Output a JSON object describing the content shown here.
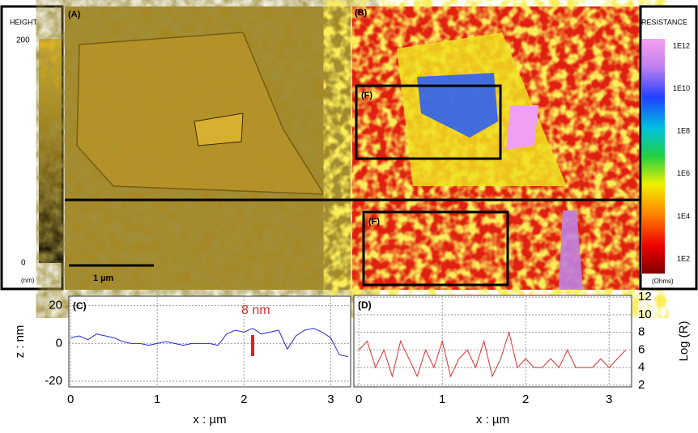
{
  "panels": {
    "a_label": "(A)",
    "b_label": "(B)",
    "scale_bar": "1 µm",
    "f_labels": [
      "(F)",
      "(F)"
    ]
  },
  "height_colorbar": {
    "title": "HEIGHT",
    "ticks": [
      "200",
      "0"
    ],
    "unit": "(nm)"
  },
  "resistance_colorbar": {
    "title": "RESISTANCE",
    "ticks": [
      "1E12",
      "1E10",
      "1E8",
      "1E6",
      "1E4",
      "1E2"
    ],
    "unit": "(Ohms)"
  },
  "chart_data": [
    {
      "type": "line",
      "panel_label": "(C)",
      "x_label": "x : µm",
      "y_label": "z : nm",
      "annotation": "8 nm",
      "y_axis_side": "left",
      "grid": true,
      "x": [
        0,
        0.1,
        0.2,
        0.3,
        0.4,
        0.5,
        0.6,
        0.7,
        0.8,
        0.9,
        1,
        1.1,
        1.2,
        1.3,
        1.4,
        1.5,
        1.6,
        1.7,
        1.8,
        1.9,
        2,
        2.1,
        2.2,
        2.3,
        2.4,
        2.5,
        2.6,
        2.7,
        2.8,
        2.9,
        3,
        3.1,
        3.2
      ],
      "series": [
        {
          "color": "#2a2ad0",
          "values": [
            3,
            4,
            2,
            5,
            4,
            3,
            1,
            0,
            0,
            -1,
            0,
            1,
            0,
            -1,
            0,
            0,
            0,
            -1,
            5,
            7,
            6,
            8,
            5,
            6,
            7,
            -3,
            4,
            7,
            8,
            6,
            3,
            -6,
            -7
          ]
        }
      ],
      "xlim": [
        -0.02,
        3.23
      ],
      "xticks": [
        0,
        1,
        2,
        3
      ],
      "ylim": [
        -23,
        25
      ],
      "yticks": [
        -20,
        0,
        20
      ]
    },
    {
      "type": "line",
      "panel_label": "(D)",
      "x_label": "x : µm",
      "y_label": "Log (R)",
      "y_axis_side": "right",
      "grid": true,
      "x": [
        0,
        0.1,
        0.2,
        0.3,
        0.4,
        0.5,
        0.6,
        0.7,
        0.8,
        0.9,
        1,
        1.1,
        1.2,
        1.3,
        1.4,
        1.5,
        1.6,
        1.7,
        1.8,
        1.9,
        2,
        2.1,
        2.2,
        2.3,
        2.4,
        2.5,
        2.6,
        2.7,
        2.8,
        2.9,
        3,
        3.1,
        3.2
      ],
      "series": [
        {
          "color": "#e03030",
          "values": [
            6,
            7,
            4,
            6,
            3,
            7,
            5,
            3,
            6,
            4,
            7,
            3,
            5,
            6,
            4,
            7,
            3,
            5,
            8,
            4,
            5,
            4,
            4,
            5,
            4,
            6,
            4,
            4,
            4,
            5,
            4,
            5,
            6
          ]
        }
      ],
      "xlim": [
        -0.06,
        3.27
      ],
      "xticks": [
        0,
        1,
        2,
        3
      ],
      "ylim": [
        1.8,
        12.2
      ],
      "yticks": [
        2,
        4,
        6,
        8,
        10,
        12
      ]
    }
  ]
}
